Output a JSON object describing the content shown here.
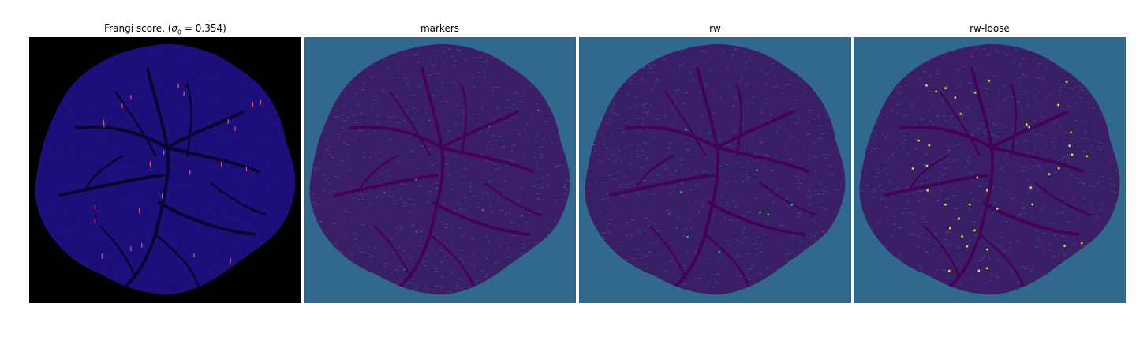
{
  "figure": {
    "panels": [
      {
        "id": "frangi",
        "title_prefix": "Frangi score, (",
        "title_sigma": "σ",
        "title_sub": "0",
        "title_suffix": " = 0.354)",
        "background": "#000000",
        "blob_fill": "#1c0f7a",
        "vessel_color": "#0a0530",
        "highlight_color": "#e0508a"
      },
      {
        "id": "markers",
        "title": "markers",
        "background": "#31688e",
        "blob_fill": "#3b1f66",
        "vessel_color": "#44015a",
        "highlight_color": "#31688e"
      },
      {
        "id": "rw",
        "title": "rw",
        "background": "#31688e",
        "blob_fill": "#3b1f66",
        "vessel_color": "#44015a",
        "highlight_color": "#35b779"
      },
      {
        "id": "rw-loose",
        "title": "rw-loose",
        "background": "#31688e",
        "blob_fill": "#3b1f66",
        "vessel_color": "#44015a",
        "highlight_color": "#d6e82a"
      }
    ]
  }
}
